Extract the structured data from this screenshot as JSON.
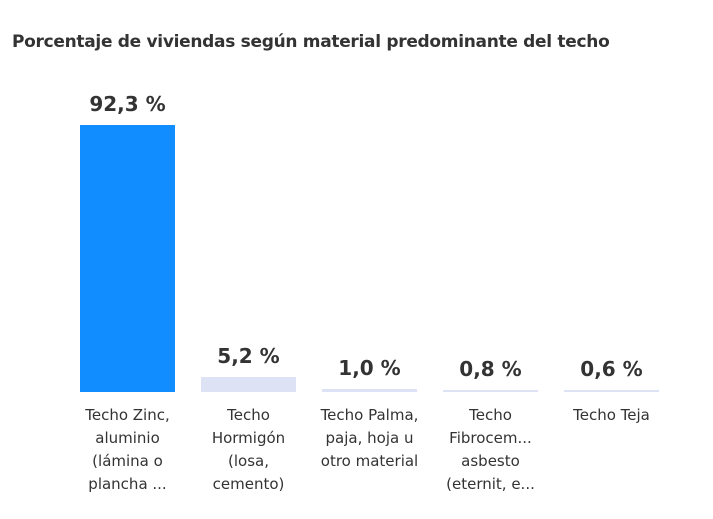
{
  "chart_data": {
    "type": "bar",
    "title": "Porcentaje de viviendas según material predominante del techo",
    "categories": [
      "Techo Zinc, aluminio (lámina o plancha ...",
      "Techo Hormigón (losa, cemento)",
      "Techo Palma, paja, hoja u otro material",
      "Techo Fibrocem... asbesto (eternit, e...",
      "Techo Teja"
    ],
    "values": [
      92.3,
      5.2,
      1.0,
      0.8,
      0.6
    ],
    "value_labels": [
      "92,3 %",
      "5,2 %",
      "1,0 %",
      "0,8 %",
      "0,6 %"
    ],
    "colors": [
      "#118dff",
      "#dde2f4",
      "#dde2f4",
      "#dde2f4",
      "#dde2f4"
    ]
  }
}
